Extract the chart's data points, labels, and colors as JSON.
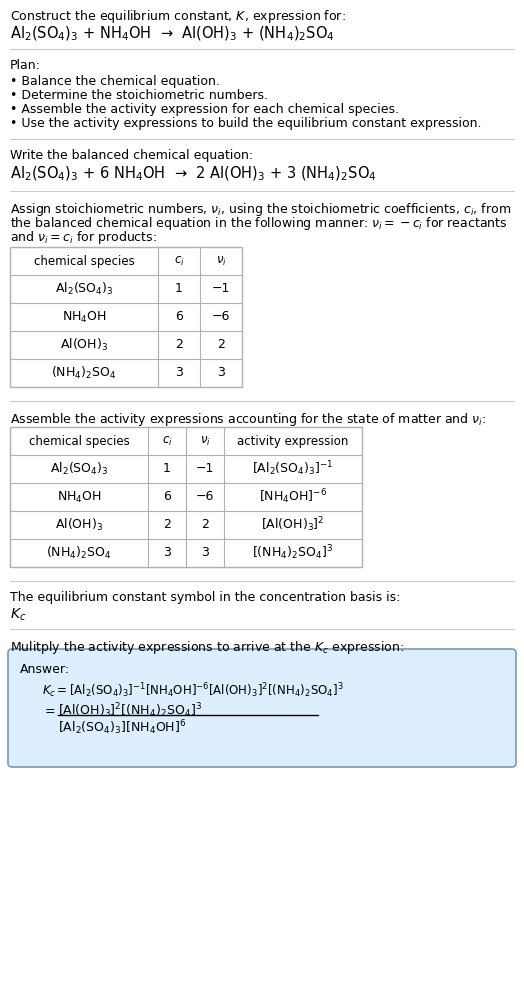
{
  "title_line1": "Construct the equilibrium constant, $K$, expression for:",
  "title_line2": "$\\mathrm{Al_2(SO_4)_3}$ + $\\mathrm{NH_4OH}$  →  $\\mathrm{Al(OH)_3}$ + $\\mathrm{(NH_4)_2SO_4}$",
  "plan_header": "Plan:",
  "plan_items": [
    "• Balance the chemical equation.",
    "• Determine the stoichiometric numbers.",
    "• Assemble the activity expression for each chemical species.",
    "• Use the activity expressions to build the equilibrium constant expression."
  ],
  "balanced_header": "Write the balanced chemical equation:",
  "balanced_eq": "$\\mathrm{Al_2(SO_4)_3}$ + 6 $\\mathrm{NH_4OH}$  →  2 $\\mathrm{Al(OH)_3}$ + 3 $\\mathrm{(NH_4)_2SO_4}$",
  "stoich_header_parts": [
    "Assign stoichiometric numbers, $\\nu_i$, using the stoichiometric coefficients, $c_i$, from",
    "the balanced chemical equation in the following manner: $\\nu_i = -c_i$ for reactants",
    "and $\\nu_i = c_i$ for products:"
  ],
  "table1_cols": [
    "chemical species",
    "$c_i$",
    "$\\nu_i$"
  ],
  "table1_rows": [
    [
      "$\\mathrm{Al_2(SO_4)_3}$",
      "1",
      "−1"
    ],
    [
      "$\\mathrm{NH_4OH}$",
      "6",
      "−6"
    ],
    [
      "$\\mathrm{Al(OH)_3}$",
      "2",
      "2"
    ],
    [
      "$\\mathrm{(NH_4)_2SO_4}$",
      "3",
      "3"
    ]
  ],
  "activity_header": "Assemble the activity expressions accounting for the state of matter and $\\nu_i$:",
  "table2_cols": [
    "chemical species",
    "$c_i$",
    "$\\nu_i$",
    "activity expression"
  ],
  "table2_rows": [
    [
      "$\\mathrm{Al_2(SO_4)_3}$",
      "1",
      "−1",
      "$[\\mathrm{Al_2(SO_4)_3}]^{-1}$"
    ],
    [
      "$\\mathrm{NH_4OH}$",
      "6",
      "−6",
      "$[\\mathrm{NH_4OH}]^{-6}$"
    ],
    [
      "$\\mathrm{Al(OH)_3}$",
      "2",
      "2",
      "$[\\mathrm{Al(OH)_3}]^{2}$"
    ],
    [
      "$\\mathrm{(NH_4)_2SO_4}$",
      "3",
      "3",
      "$[(\\mathrm{NH_4})_2\\mathrm{SO_4}]^{3}$"
    ]
  ],
  "Kc_header": "The equilibrium constant symbol in the concentration basis is:",
  "Kc_symbol": "$K_c$",
  "multiply_header": "Mulitply the activity expressions to arrive at the $K_c$ expression:",
  "answer_label": "Answer:",
  "answer_line1": "$K_c = [\\mathrm{Al_2(SO_4)_3}]^{-1} [\\mathrm{NH_4OH}]^{-6} [\\mathrm{Al(OH)_3}]^{2} [(\\mathrm{NH_4})_2\\mathrm{SO_4}]^{3}$",
  "answer_eq_lhs": "$= $",
  "answer_num": "$[\\mathrm{Al(OH)_3}]^{2} [(\\mathrm{NH_4})_2\\mathrm{SO_4}]^{3}$",
  "answer_den": "$[\\mathrm{Al_2(SO_4)_3}] [\\mathrm{NH_4OH}]^{6}$",
  "bg_color": "#ffffff",
  "table_line_color": "#b0b0b0",
  "sep_line_color": "#cccccc",
  "answer_box_bg": "#ddeeff",
  "answer_box_border": "#7799bb",
  "text_color": "#000000",
  "font_size": 9.0
}
